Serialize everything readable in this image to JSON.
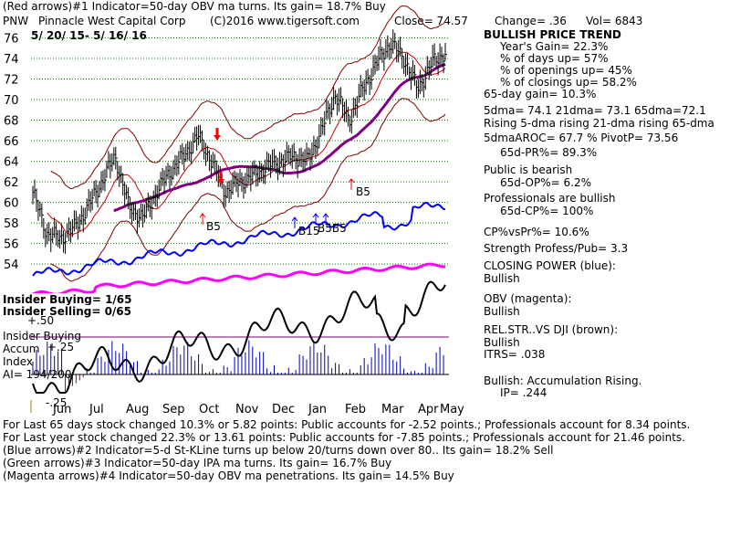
{
  "header": {
    "line1": "(Red arrows)#1 Indicator=50-day OBV ma turns. Its gain= 18.7% Buy",
    "symbol": "PNW",
    "company": "Pinnacle West Capital Corp",
    "copyright": "(C)2016 www.tigersoft.com",
    "close": "Close= 74.57",
    "change": "Change= .36",
    "vol": "Vol= 6843",
    "date_range": "5/ 20/ 15- 5/ 16/ 16"
  },
  "stats": {
    "trend_title": "BULLISH PRICE TREND",
    "years_gain": "Year's Gain= 22.3%",
    "days_up": "% of days up= 57%",
    "openings_up": "% of openings up= 45%",
    "closings_up": "% of closings up= 58.2%",
    "gain_65": "65-day gain= 10.3%",
    "dma": "5dma= 74.1 21dma= 73.1 65dma=72.1",
    "rising": "Rising 5-dma rising 21-dma rising 65-dma",
    "aroc": "5dmaAROC= 67.7 %  PivotP= 73.56",
    "pr": "65d-PR%= 89.3%",
    "public": "Public is bearish",
    "op": "65d-OP%= 6.2%",
    "professionals": "Professionals are bullish",
    "cp": "65d-CP%= 100%",
    "cpvspr": "CP%vsPr%=  10.6%",
    "strength": "Strength Profess/Pub= 3.3",
    "closing_power": "CLOSING POWER (blue):",
    "cp_bullish": "Bullish",
    "obv": "OBV (magenta):",
    "obv_bullish": "Bullish",
    "relstr": "REL.STR..VS DJI (brown):",
    "relstr_bullish": "Bullish",
    "itrs": "ITRS= .038",
    "accum": "Bullish: Accumulation Rising.",
    "ip": "IP=  .244"
  },
  "insider": {
    "buying": "Insider Buying= 1/65",
    "selling": "Insider Selling= 0/65",
    "label1": "Insider Buying",
    "label2": "Accum",
    "label3": "Index",
    "ai": "AI= 194/200",
    "plus50": "+.50",
    "plus25": "+.25",
    "minus25": "-.25"
  },
  "footer": {
    "line1": "For Last 65 days stock changed  10.3% or  5.82 points:  Public accounts for -2.52 points.;  Professionals account for  8.34 points.",
    "line2": "For Last year stock changed  22.3% or  13.61 points:  Public accounts for -7.85 points.;  Professionals account for  21.46 points.",
    "line3": "(Blue arrows)#2 Indicator=5-d St-KLine turns up below 20/turns down over 80.. Its gain= 18.2% Sell",
    "line4": "(Green arrows)#3 Indicator=50-day IPA ma turns. Its gain= 16.7% Buy",
    "line5": "(Magenta arrows)#4 Indicator=50-day OBV ma penetrations. Its gain= 14.5% Buy"
  },
  "colors": {
    "price": "#000000",
    "bands": "#800000",
    "ma21": "#cc0000",
    "ma65": "#800080",
    "closing_power": "#0000ff",
    "obv": "#ff00ff",
    "accum_bars": "#0000b0",
    "grid": "#008000",
    "insider_line": "#800080",
    "arrow_red": "#ff0000",
    "arrow_blue": "#0000ff"
  },
  "chart_data": {
    "type": "line",
    "y_ticks": [
      76,
      74,
      72,
      70,
      68,
      66,
      64,
      62,
      60,
      58,
      56,
      54
    ],
    "ylim": [
      52.5,
      77.2
    ],
    "x_ticks": [
      "Jun",
      "Jul",
      "Aug",
      "Sep",
      "Oct",
      "Nov",
      "Dec",
      "Jan",
      "Feb",
      "Mar",
      "Apr",
      "May"
    ],
    "price_close_approx": [
      61,
      57,
      56.5,
      57.5,
      59.5,
      62,
      64.5,
      59.5,
      58.5,
      61,
      63,
      64.5,
      66.5,
      64,
      61,
      62,
      62.5,
      63.5,
      64,
      64.5,
      64,
      67,
      70.5,
      68,
      71,
      73.5,
      75.5,
      74,
      71,
      73.5,
      74.6
    ],
    "markers": [
      {
        "label": "B5",
        "color": "red"
      },
      {
        "label": "B5",
        "color": "red"
      },
      {
        "label": "B15",
        "color": "blue"
      },
      {
        "label": "B5B5",
        "color": "blue"
      }
    ]
  }
}
